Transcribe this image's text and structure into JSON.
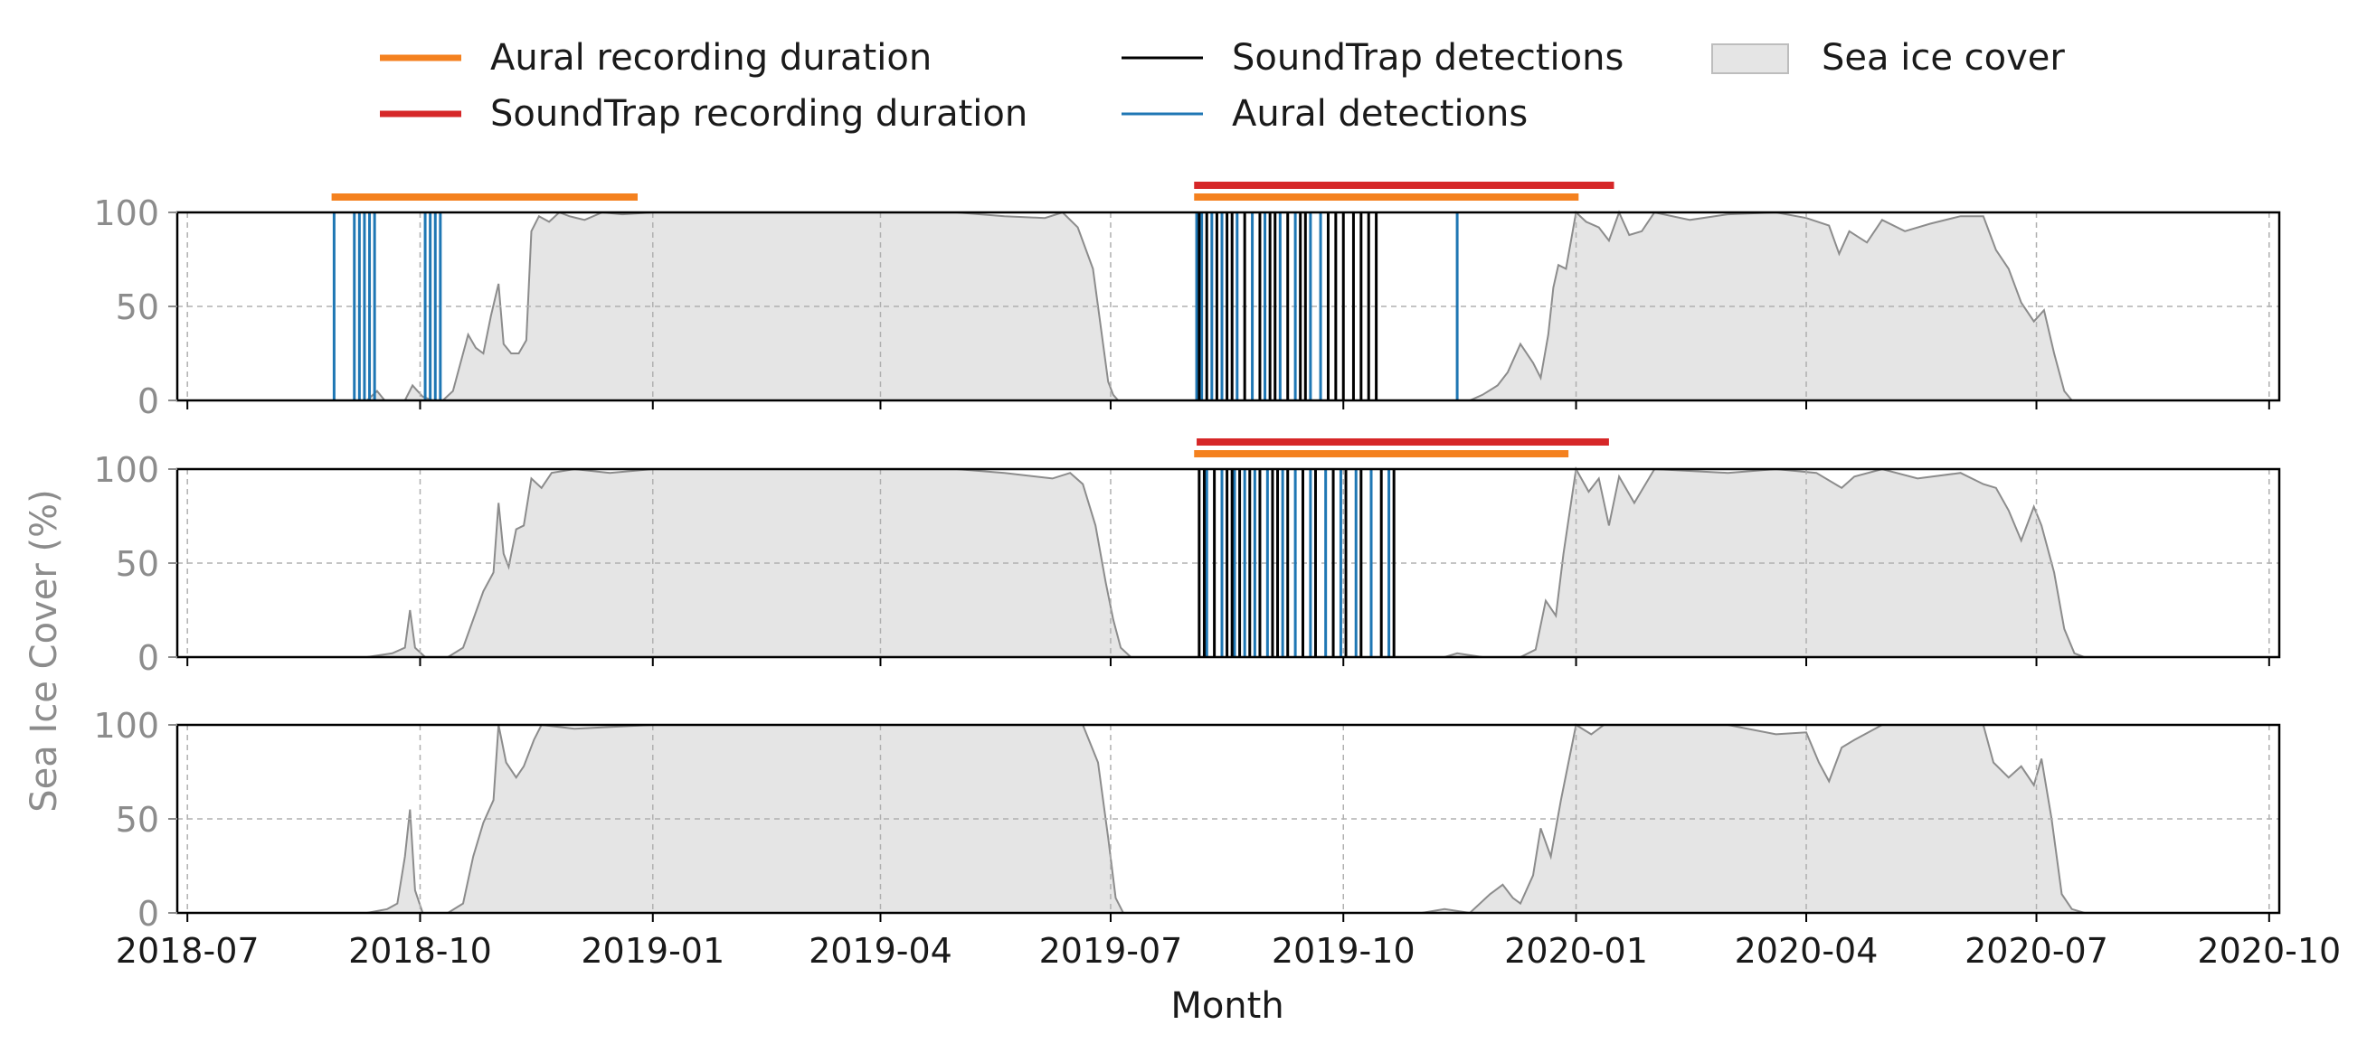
{
  "legend": {
    "items": [
      {
        "key": "aural_dur",
        "label": "Aural recording duration",
        "color": "#f4811f",
        "kind": "thick-line"
      },
      {
        "key": "st_dur",
        "label": "SoundTrap recording duration",
        "color": "#d62728",
        "kind": "thick-line"
      },
      {
        "key": "st_det",
        "label": "SoundTrap detections",
        "color": "#000000",
        "kind": "thin-line"
      },
      {
        "key": "aural_det",
        "label": "Aural detections",
        "color": "#1f77b4",
        "kind": "thin-line"
      },
      {
        "key": "ice",
        "label": "Sea ice cover",
        "color": "#e5e5e5",
        "kind": "box"
      }
    ]
  },
  "chart_data": {
    "type": "area",
    "xlabel": "Month",
    "ylabel": "Sea Ice Cover (%)",
    "x_ticks": [
      "2018-07",
      "2018-10",
      "2019-01",
      "2019-04",
      "2019-07",
      "2019-10",
      "2020-01",
      "2020-04",
      "2020-07",
      "2020-10"
    ],
    "x_range": [
      "2018-06-27",
      "2020-10-05"
    ],
    "y_ticks": [
      0,
      50,
      100
    ],
    "ylim": [
      0,
      100
    ],
    "grid": true,
    "legend_position": "top",
    "colors": {
      "ice_fill": "#e5e5e5",
      "ice_line": "#8c8c8c",
      "aural": "#1f77b4",
      "soundtrap": "#000000",
      "aural_duration": "#f4811f",
      "soundtrap_duration": "#d62728"
    },
    "panels": [
      {
        "id": "panel-1",
        "ice": [
          [
            "2018-06-27",
            0
          ],
          [
            "2018-08-05",
            0
          ],
          [
            "2018-08-25",
            0
          ],
          [
            "2018-09-10",
            0
          ],
          [
            "2018-09-14",
            5
          ],
          [
            "2018-09-17",
            0
          ],
          [
            "2018-09-25",
            0
          ],
          [
            "2018-09-28",
            8
          ],
          [
            "2018-10-02",
            2
          ],
          [
            "2018-10-06",
            0
          ],
          [
            "2018-10-10",
            0
          ],
          [
            "2018-10-14",
            5
          ],
          [
            "2018-10-17",
            20
          ],
          [
            "2018-10-20",
            35
          ],
          [
            "2018-10-23",
            28
          ],
          [
            "2018-10-26",
            25
          ],
          [
            "2018-10-29",
            45
          ],
          [
            "2018-11-01",
            62
          ],
          [
            "2018-11-03",
            30
          ],
          [
            "2018-11-06",
            25
          ],
          [
            "2018-11-09",
            25
          ],
          [
            "2018-11-12",
            32
          ],
          [
            "2018-11-14",
            90
          ],
          [
            "2018-11-17",
            98
          ],
          [
            "2018-11-21",
            95
          ],
          [
            "2018-11-25",
            100
          ],
          [
            "2018-11-29",
            98
          ],
          [
            "2018-12-05",
            96
          ],
          [
            "2018-12-12",
            100
          ],
          [
            "2018-12-20",
            99
          ],
          [
            "2019-01-01",
            100
          ],
          [
            "2019-02-01",
            100
          ],
          [
            "2019-03-01",
            100
          ],
          [
            "2019-04-01",
            100
          ],
          [
            "2019-05-01",
            100
          ],
          [
            "2019-05-20",
            98
          ],
          [
            "2019-06-05",
            97
          ],
          [
            "2019-06-12",
            100
          ],
          [
            "2019-06-18",
            92
          ],
          [
            "2019-06-24",
            70
          ],
          [
            "2019-06-28",
            30
          ],
          [
            "2019-06-30",
            10
          ],
          [
            "2019-07-02",
            3
          ],
          [
            "2019-07-04",
            0
          ],
          [
            "2019-10-01",
            0
          ],
          [
            "2019-10-20",
            0
          ],
          [
            "2019-11-20",
            0
          ],
          [
            "2019-11-25",
            3
          ],
          [
            "2019-12-01",
            8
          ],
          [
            "2019-12-05",
            15
          ],
          [
            "2019-12-10",
            30
          ],
          [
            "2019-12-15",
            20
          ],
          [
            "2019-12-18",
            12
          ],
          [
            "2019-12-21",
            35
          ],
          [
            "2019-12-23",
            60
          ],
          [
            "2019-12-25",
            72
          ],
          [
            "2019-12-28",
            70
          ],
          [
            "2020-01-01",
            100
          ],
          [
            "2020-01-05",
            95
          ],
          [
            "2020-01-10",
            92
          ],
          [
            "2020-01-14",
            85
          ],
          [
            "2020-01-18",
            100
          ],
          [
            "2020-01-22",
            88
          ],
          [
            "2020-01-27",
            90
          ],
          [
            "2020-02-01",
            100
          ],
          [
            "2020-02-15",
            96
          ],
          [
            "2020-03-01",
            99
          ],
          [
            "2020-03-20",
            100
          ],
          [
            "2020-04-01",
            97
          ],
          [
            "2020-04-10",
            93
          ],
          [
            "2020-04-14",
            78
          ],
          [
            "2020-04-18",
            90
          ],
          [
            "2020-04-25",
            84
          ],
          [
            "2020-05-01",
            96
          ],
          [
            "2020-05-10",
            90
          ],
          [
            "2020-05-20",
            94
          ],
          [
            "2020-06-01",
            98
          ],
          [
            "2020-06-10",
            98
          ],
          [
            "2020-06-15",
            80
          ],
          [
            "2020-06-20",
            70
          ],
          [
            "2020-06-25",
            52
          ],
          [
            "2020-06-30",
            42
          ],
          [
            "2020-07-04",
            48
          ],
          [
            "2020-07-08",
            25
          ],
          [
            "2020-07-12",
            5
          ],
          [
            "2020-07-15",
            0
          ],
          [
            "2020-10-05",
            0
          ]
        ],
        "aural_detections": [
          "2018-08-28",
          "2018-09-05",
          "2018-09-07",
          "2018-09-09",
          "2018-09-11",
          "2018-09-13",
          "2018-10-03",
          "2018-10-05",
          "2018-10-07",
          "2018-10-09",
          "2019-08-04",
          "2019-08-06",
          "2019-08-10",
          "2019-08-14",
          "2019-08-20",
          "2019-08-26",
          "2019-08-31",
          "2019-09-06",
          "2019-09-12",
          "2019-09-18",
          "2019-09-22",
          "2019-11-15"
        ],
        "soundtrap_detections": [
          "2019-08-05",
          "2019-08-08",
          "2019-08-12",
          "2019-08-16",
          "2019-08-18",
          "2019-08-23",
          "2019-08-29",
          "2019-09-02",
          "2019-09-04",
          "2019-09-09",
          "2019-09-14",
          "2019-09-16",
          "2019-09-25",
          "2019-09-28",
          "2019-10-01",
          "2019-10-05",
          "2019-10-08",
          "2019-10-11",
          "2019-10-14"
        ],
        "aural_duration": [
          "2018-08-27",
          "2018-12-26"
        ],
        "soundtrap_duration": [
          "2019-08-03",
          "2020-01-16"
        ],
        "aural_duration_2": [
          "2019-08-03",
          "2020-01-02"
        ]
      },
      {
        "id": "panel-2",
        "ice": [
          [
            "2018-06-27",
            0
          ],
          [
            "2018-08-20",
            0
          ],
          [
            "2018-09-10",
            0
          ],
          [
            "2018-09-20",
            2
          ],
          [
            "2018-09-25",
            5
          ],
          [
            "2018-09-27",
            25
          ],
          [
            "2018-09-29",
            5
          ],
          [
            "2018-10-03",
            0
          ],
          [
            "2018-10-12",
            0
          ],
          [
            "2018-10-18",
            5
          ],
          [
            "2018-10-22",
            20
          ],
          [
            "2018-10-26",
            35
          ],
          [
            "2018-10-30",
            45
          ],
          [
            "2018-11-01",
            82
          ],
          [
            "2018-11-03",
            55
          ],
          [
            "2018-11-05",
            48
          ],
          [
            "2018-11-08",
            68
          ],
          [
            "2018-11-11",
            70
          ],
          [
            "2018-11-14",
            95
          ],
          [
            "2018-11-18",
            90
          ],
          [
            "2018-11-22",
            98
          ],
          [
            "2018-12-01",
            100
          ],
          [
            "2018-12-15",
            98
          ],
          [
            "2019-01-01",
            100
          ],
          [
            "2019-03-01",
            100
          ],
          [
            "2019-05-01",
            100
          ],
          [
            "2019-05-20",
            98
          ],
          [
            "2019-06-08",
            95
          ],
          [
            "2019-06-15",
            98
          ],
          [
            "2019-06-20",
            92
          ],
          [
            "2019-06-25",
            70
          ],
          [
            "2019-06-29",
            40
          ],
          [
            "2019-07-02",
            20
          ],
          [
            "2019-07-05",
            5
          ],
          [
            "2019-07-09",
            0
          ],
          [
            "2019-11-10",
            0
          ],
          [
            "2019-11-15",
            2
          ],
          [
            "2019-11-25",
            0
          ],
          [
            "2019-12-10",
            0
          ],
          [
            "2019-12-16",
            4
          ],
          [
            "2019-12-20",
            30
          ],
          [
            "2019-12-24",
            22
          ],
          [
            "2019-12-27",
            55
          ],
          [
            "2020-01-01",
            100
          ],
          [
            "2020-01-06",
            88
          ],
          [
            "2020-01-10",
            95
          ],
          [
            "2020-01-14",
            70
          ],
          [
            "2020-01-18",
            96
          ],
          [
            "2020-01-24",
            82
          ],
          [
            "2020-02-01",
            100
          ],
          [
            "2020-03-01",
            98
          ],
          [
            "2020-03-20",
            100
          ],
          [
            "2020-04-05",
            98
          ],
          [
            "2020-04-15",
            90
          ],
          [
            "2020-04-20",
            96
          ],
          [
            "2020-05-01",
            100
          ],
          [
            "2020-05-15",
            95
          ],
          [
            "2020-06-01",
            98
          ],
          [
            "2020-06-10",
            92
          ],
          [
            "2020-06-15",
            90
          ],
          [
            "2020-06-20",
            78
          ],
          [
            "2020-06-25",
            62
          ],
          [
            "2020-06-30",
            80
          ],
          [
            "2020-07-03",
            70
          ],
          [
            "2020-07-08",
            45
          ],
          [
            "2020-07-12",
            15
          ],
          [
            "2020-07-16",
            2
          ],
          [
            "2020-07-20",
            0
          ],
          [
            "2020-10-05",
            0
          ]
        ],
        "aural_detections": [
          "2019-08-08",
          "2019-08-14",
          "2019-08-19",
          "2019-08-23",
          "2019-08-27",
          "2019-09-01",
          "2019-09-07",
          "2019-09-12",
          "2019-09-18",
          "2019-09-24",
          "2019-09-30",
          "2019-10-06",
          "2019-10-12",
          "2019-10-19"
        ],
        "soundtrap_detections": [
          "2019-08-05",
          "2019-08-07",
          "2019-08-11",
          "2019-08-16",
          "2019-08-18",
          "2019-08-21",
          "2019-08-25",
          "2019-08-29",
          "2019-09-03",
          "2019-09-05",
          "2019-09-09",
          "2019-09-15",
          "2019-09-20",
          "2019-09-27",
          "2019-10-02",
          "2019-10-08",
          "2019-10-16",
          "2019-10-21"
        ],
        "aural_duration": [
          "2019-08-03",
          "2019-12-29"
        ],
        "soundtrap_duration": [
          "2019-08-04",
          "2020-01-14"
        ]
      },
      {
        "id": "panel-3",
        "ice": [
          [
            "2018-06-27",
            0
          ],
          [
            "2018-08-20",
            0
          ],
          [
            "2018-09-10",
            0
          ],
          [
            "2018-09-18",
            2
          ],
          [
            "2018-09-22",
            5
          ],
          [
            "2018-09-25",
            30
          ],
          [
            "2018-09-27",
            55
          ],
          [
            "2018-09-29",
            12
          ],
          [
            "2018-10-02",
            0
          ],
          [
            "2018-10-12",
            0
          ],
          [
            "2018-10-18",
            5
          ],
          [
            "2018-10-22",
            30
          ],
          [
            "2018-10-26",
            48
          ],
          [
            "2018-10-30",
            60
          ],
          [
            "2018-11-01",
            100
          ],
          [
            "2018-11-04",
            80
          ],
          [
            "2018-11-08",
            72
          ],
          [
            "2018-11-11",
            78
          ],
          [
            "2018-11-15",
            92
          ],
          [
            "2018-11-18",
            100
          ],
          [
            "2018-12-01",
            98
          ],
          [
            "2019-01-01",
            100
          ],
          [
            "2019-03-01",
            100
          ],
          [
            "2019-05-01",
            100
          ],
          [
            "2019-06-01",
            100
          ],
          [
            "2019-06-20",
            100
          ],
          [
            "2019-06-26",
            80
          ],
          [
            "2019-06-30",
            40
          ],
          [
            "2019-07-03",
            8
          ],
          [
            "2019-07-06",
            0
          ],
          [
            "2019-11-01",
            0
          ],
          [
            "2019-11-10",
            2
          ],
          [
            "2019-11-20",
            0
          ],
          [
            "2019-11-28",
            10
          ],
          [
            "2019-12-03",
            15
          ],
          [
            "2019-12-07",
            8
          ],
          [
            "2019-12-10",
            5
          ],
          [
            "2019-12-15",
            20
          ],
          [
            "2019-12-18",
            45
          ],
          [
            "2019-12-22",
            30
          ],
          [
            "2019-12-26",
            60
          ],
          [
            "2020-01-01",
            100
          ],
          [
            "2020-01-07",
            95
          ],
          [
            "2020-01-12",
            100
          ],
          [
            "2020-02-01",
            100
          ],
          [
            "2020-03-01",
            100
          ],
          [
            "2020-03-20",
            95
          ],
          [
            "2020-04-01",
            96
          ],
          [
            "2020-04-06",
            80
          ],
          [
            "2020-04-10",
            70
          ],
          [
            "2020-04-15",
            88
          ],
          [
            "2020-04-20",
            92
          ],
          [
            "2020-05-01",
            100
          ],
          [
            "2020-05-15",
            100
          ],
          [
            "2020-06-01",
            100
          ],
          [
            "2020-06-10",
            100
          ],
          [
            "2020-06-14",
            80
          ],
          [
            "2020-06-20",
            72
          ],
          [
            "2020-06-25",
            78
          ],
          [
            "2020-06-30",
            68
          ],
          [
            "2020-07-03",
            82
          ],
          [
            "2020-07-07",
            50
          ],
          [
            "2020-07-11",
            10
          ],
          [
            "2020-07-15",
            2
          ],
          [
            "2020-07-20",
            0
          ],
          [
            "2020-10-05",
            0
          ]
        ],
        "aural_detections": [],
        "soundtrap_detections": []
      }
    ]
  }
}
